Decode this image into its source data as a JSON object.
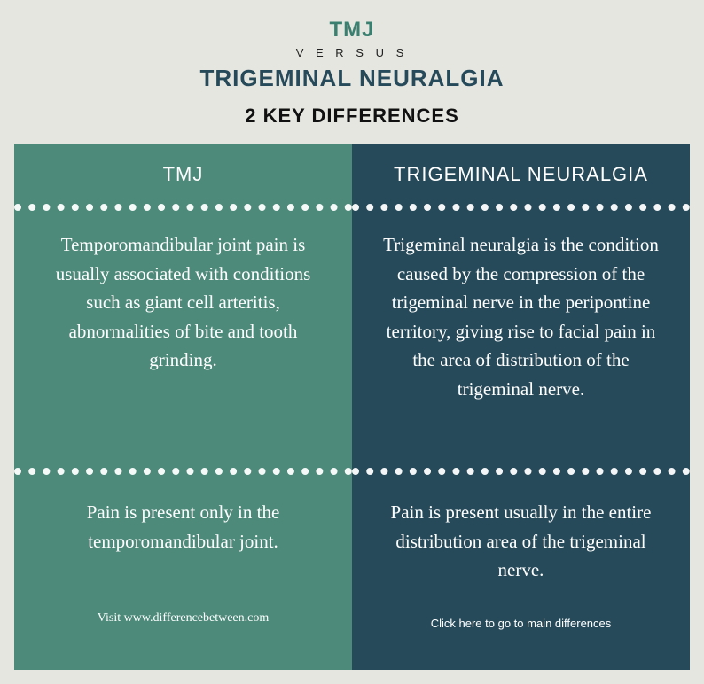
{
  "header": {
    "title1": "TMJ",
    "versus": "V E R S U S",
    "title2": "TRIGEMINAL NEURALGIA",
    "subtitle": "2 KEY DIFFERENCES"
  },
  "left": {
    "heading": "TMJ",
    "section1": "Temporomandibular joint pain is usually associated with conditions such as giant cell arteritis, abnormalities of bite and tooth grinding.",
    "section2": "Pain is present only in the temporomandibular joint.",
    "footer": "Visit www.differencebetween.com"
  },
  "right": {
    "heading": "TRIGEMINAL NEURALGIA",
    "section1": "Trigeminal neuralgia is the condition caused by the compression of the trigeminal nerve in the peripontine territory, giving rise to facial pain in the area of distribution of the trigeminal nerve.",
    "section2": "Pain is present usually in the entire distribution area of the trigeminal nerve.",
    "footer": "Click here to go to main differences"
  },
  "colors": {
    "left_bg": "#4d8a7a",
    "right_bg": "#264a5a",
    "page_bg": "#e6e6e1",
    "title1_color": "#3a8070",
    "title2_color": "#264a5a"
  }
}
